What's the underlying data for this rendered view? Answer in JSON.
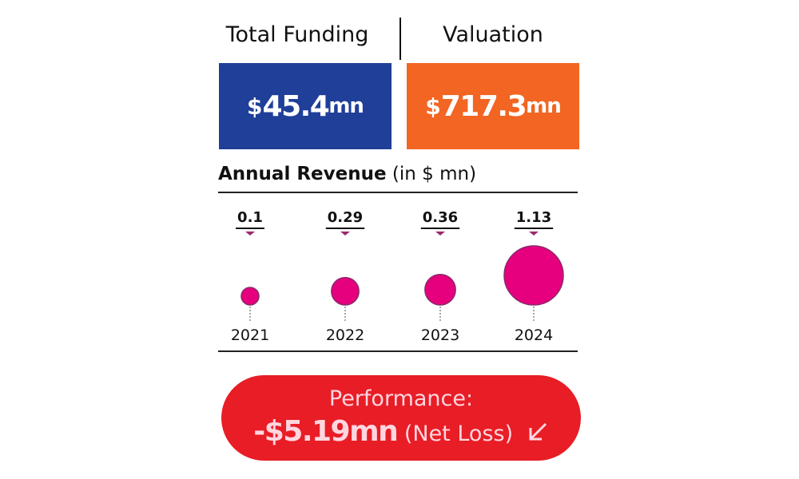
{
  "headers": {
    "funding": "Total Funding",
    "valuation": "Valuation"
  },
  "funding": {
    "currency": "$",
    "value": "45.4",
    "unit": "mn",
    "color": "#1f3f98"
  },
  "valuation": {
    "currency": "$",
    "value": "717.3",
    "unit": "mn",
    "color": "#f26522"
  },
  "revenue": {
    "title": "Annual Revenue",
    "unit": "(in $ mn)"
  },
  "chart_data": {
    "type": "bubble",
    "title": "Annual Revenue (in $ mn)",
    "categories": [
      "2021",
      "2022",
      "2023",
      "2024"
    ],
    "values": [
      0.1,
      0.29,
      0.36,
      1.13
    ],
    "labels": [
      "0.1",
      "0.29",
      "0.36",
      "1.13"
    ],
    "color": "#e6007e"
  },
  "performance": {
    "label": "Performance:",
    "value": "-$5.19mn",
    "note": "(Net Loss)",
    "icon": "arrow-down-left-icon",
    "color": "#e81d25"
  }
}
